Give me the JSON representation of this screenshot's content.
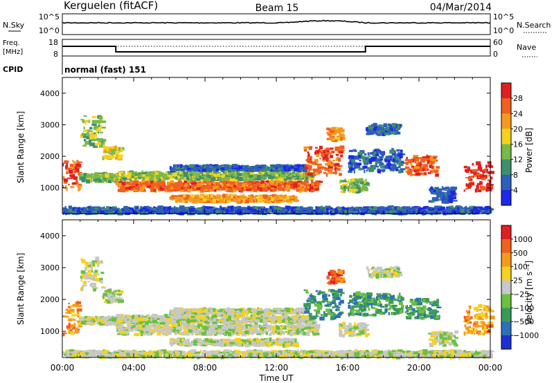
{
  "header": {
    "station": "Kerguelen (fitACF)",
    "beam": "Beam 15",
    "date": "04/Mar/2014"
  },
  "panels": {
    "nsky": {
      "left_label": "N.Sky",
      "right_label": "N.Search",
      "ticks_left": [
        "10^5",
        "10^0"
      ],
      "ticks_right": [
        "10^5",
        "10^0"
      ]
    },
    "freq": {
      "left_label_1": "Freq.",
      "left_label_2": "[MHz]",
      "right_label": "Nave",
      "ticks_left": [
        "18",
        "8"
      ],
      "ticks_right": [
        "60",
        "0"
      ]
    },
    "cpid": {
      "label": "CPID",
      "mode": "normal (fast) 151"
    }
  },
  "chart_data": [
    {
      "type": "heatmap",
      "name": "power",
      "ylabel": "Slant Range [km]",
      "xlabel": "Time UT",
      "x_ticks": [
        "00:00",
        "04:00",
        "08:00",
        "12:00",
        "16:00",
        "20:00",
        "00:00"
      ],
      "xlim_hours": [
        0,
        24
      ],
      "y_ticks": [
        1000,
        2000,
        3000,
        4000
      ],
      "ylim": [
        180,
        4500
      ],
      "colorbar": {
        "label": "Power [dB]",
        "ticks": [
          "4",
          "8",
          "12",
          "16",
          "20",
          "24",
          "28"
        ],
        "colors": [
          "#1e28e6",
          "#2e5fb8",
          "#3f8f6e",
          "#7ab84a",
          "#f5d21e",
          "#f59a1e",
          "#f0601e",
          "#e02020"
        ]
      }
    },
    {
      "type": "heatmap",
      "name": "velocity",
      "ylabel": "Slant Range [km]",
      "xlabel": "Time UT",
      "x_ticks": [
        "00:00",
        "04:00",
        "08:00",
        "12:00",
        "16:00",
        "20:00",
        "00:00"
      ],
      "xlim_hours": [
        0,
        24
      ],
      "y_ticks": [
        1000,
        2000,
        3000,
        4000
      ],
      "ylim": [
        180,
        4500
      ],
      "colorbar": {
        "label": "Velocity [m s⁻¹]",
        "ticks": [
          "1000",
          "500",
          "100",
          "25",
          "−25",
          "−100",
          "−500",
          "−1000"
        ],
        "colors": [
          "#2030d0",
          "#2e6fb8",
          "#3a9a5a",
          "#6ac040",
          "#c8c8c8",
          "#f5d21e",
          "#f59a1e",
          "#f0601e",
          "#e02020"
        ]
      }
    }
  ],
  "echo_regions": [
    {
      "t0": 0.0,
      "t1": 0.9,
      "r0": 900,
      "r1": 1900,
      "pcol": 6,
      "vcol": 6
    },
    {
      "t0": 0.9,
      "t1": 3.0,
      "r0": 1200,
      "r1": 1450,
      "pcol": 3,
      "vcol": 4
    },
    {
      "t0": 1.0,
      "t1": 2.2,
      "r0": 2300,
      "r1": 3300,
      "pcol": 3,
      "vcol": 4
    },
    {
      "t0": 2.2,
      "t1": 3.2,
      "r0": 1900,
      "r1": 2300,
      "pcol": 4,
      "vcol": 4
    },
    {
      "t0": 3.0,
      "t1": 14.3,
      "r0": 900,
      "r1": 1200,
      "pcol": 6,
      "vcol": 4
    },
    {
      "t0": 3.0,
      "t1": 14.0,
      "r0": 1250,
      "r1": 1500,
      "pcol": 3,
      "vcol": 4
    },
    {
      "t0": 6.0,
      "t1": 13.5,
      "r0": 1550,
      "r1": 1700,
      "pcol": 1,
      "vcol": 4
    },
    {
      "t0": 6.0,
      "t1": 13.0,
      "r0": 550,
      "r1": 750,
      "pcol": 5,
      "vcol": 4
    },
    {
      "t0": 13.5,
      "t1": 15.6,
      "r0": 1400,
      "r1": 2300,
      "pcol": 6,
      "vcol": 2
    },
    {
      "t0": 14.8,
      "t1": 15.6,
      "r0": 2500,
      "r1": 2900,
      "pcol": 5,
      "vcol": 7
    },
    {
      "t0": 15.5,
      "t1": 17.0,
      "r0": 850,
      "r1": 1250,
      "pcol": 3,
      "vcol": 4
    },
    {
      "t0": 16.0,
      "t1": 19.0,
      "r0": 1500,
      "r1": 2200,
      "pcol": 1,
      "vcol": 2
    },
    {
      "t0": 17.0,
      "t1": 18.8,
      "r0": 2700,
      "r1": 3000,
      "pcol": 1,
      "vcol": 4
    },
    {
      "t0": 19.2,
      "t1": 21.0,
      "r0": 1400,
      "r1": 2000,
      "pcol": 6,
      "vcol": 2
    },
    {
      "t0": 20.5,
      "t1": 22.0,
      "r0": 550,
      "r1": 1000,
      "pcol": 1,
      "vcol": 4
    },
    {
      "t0": 22.5,
      "t1": 24.0,
      "r0": 900,
      "r1": 1800,
      "pcol": 7,
      "vcol": 6
    },
    {
      "t0": 0.0,
      "t1": 24.0,
      "r0": 180,
      "r1": 380,
      "pcol": 1,
      "vcol": 4
    }
  ]
}
